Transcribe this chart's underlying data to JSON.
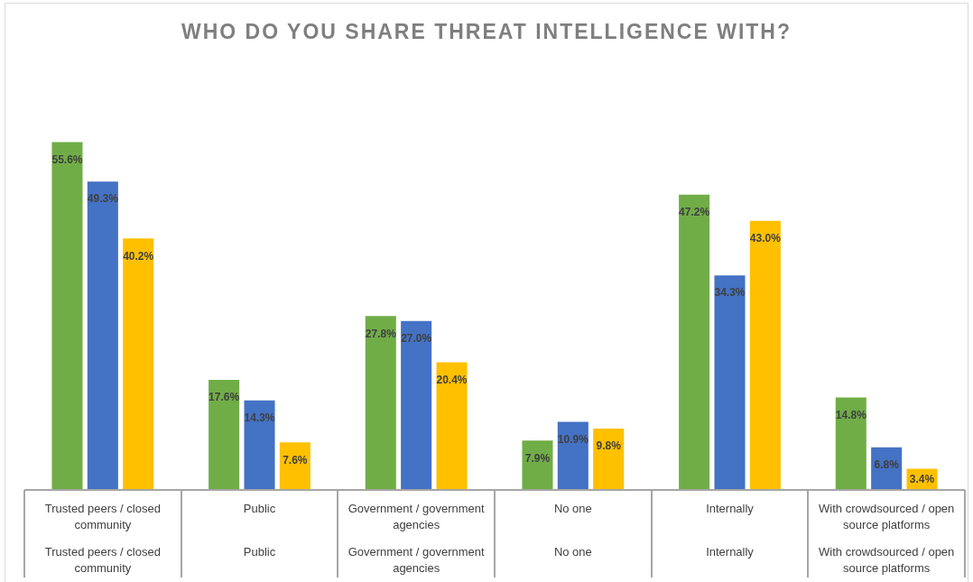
{
  "chart_data": {
    "type": "bar",
    "title": "WHO DO YOU SHARE THREAT INTELLIGENCE WITH?",
    "categories": [
      "Trusted peers / closed community",
      "Public",
      "Government / government agencies",
      "No one",
      "Internally",
      "With crowdsourced / open source platforms"
    ],
    "series": [
      {
        "color": "#70ad47",
        "values": [
          55.6,
          17.6,
          27.8,
          7.9,
          47.2,
          14.8
        ],
        "value_labels": [
          "55.6%",
          "17.6%",
          "27.8%",
          "7.9%",
          "47.2%",
          "14.8%"
        ]
      },
      {
        "color": "#4472c4",
        "values": [
          49.3,
          14.3,
          27.0,
          10.9,
          34.3,
          6.8
        ],
        "value_labels": [
          "49.3%",
          "14.3%",
          "27.0%",
          "10.9%",
          "34.3%",
          "6.8%"
        ]
      },
      {
        "color": "#ffc000",
        "values": [
          40.2,
          7.6,
          20.4,
          9.8,
          43.0,
          3.4
        ],
        "value_labels": [
          "40.2%",
          "7.6%",
          "20.4%",
          "9.8%",
          "43.0%",
          "3.4%"
        ]
      }
    ]
  }
}
